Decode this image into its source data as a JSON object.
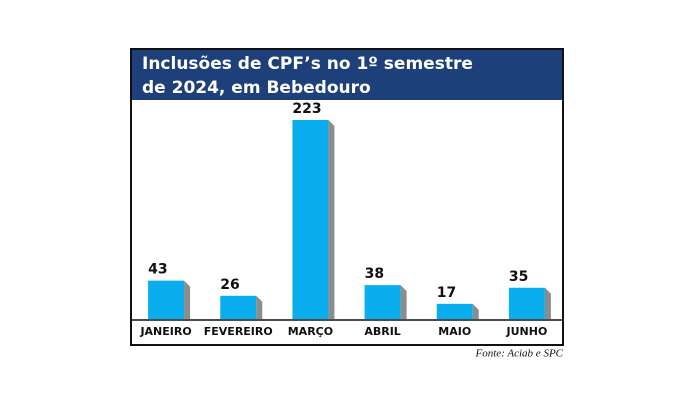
{
  "chart_data": {
    "type": "bar",
    "title": [
      "Inclusões de CPF’s no 1º semestre",
      "de 2024, em Bebedouro"
    ],
    "categories": [
      "JANEIRO",
      "FEVEREIRO",
      "MARÇO",
      "ABRIL",
      "MAIO",
      "JUNHO"
    ],
    "values": [
      43,
      26,
      223,
      38,
      17,
      35
    ],
    "color": "#0aaeef",
    "ylim": [
      0,
      223
    ],
    "source": "Fonte: Aciab e SPC"
  }
}
